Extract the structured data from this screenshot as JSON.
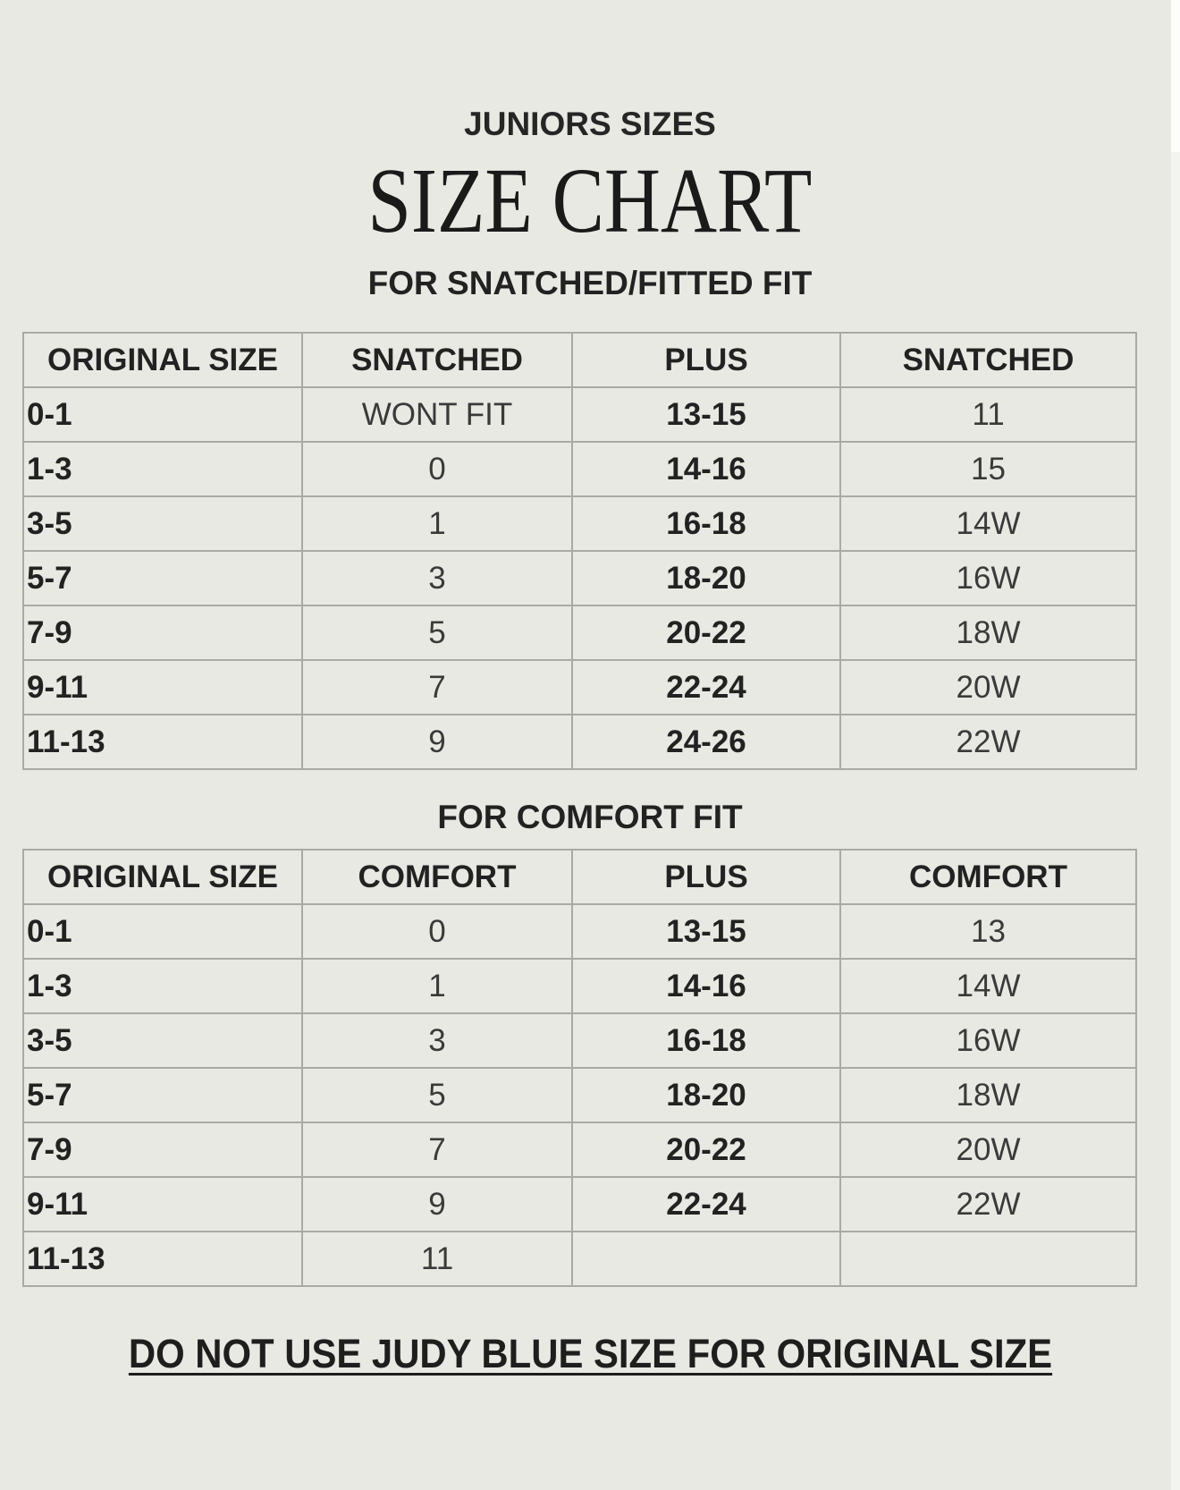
{
  "header": {
    "eyebrow": "JUNIORS SIZES",
    "title": "SIZE CHART"
  },
  "snatched": {
    "heading": "FOR SNATCHED/FITTED FIT",
    "columns": [
      "ORIGINAL SIZE",
      "SNATCHED",
      "PLUS",
      "SNATCHED"
    ],
    "rows": [
      [
        "0-1",
        "WONT FIT",
        "13-15",
        "11"
      ],
      [
        "1-3",
        "0",
        "14-16",
        "15"
      ],
      [
        "3-5",
        "1",
        "16-18",
        "14W"
      ],
      [
        "5-7",
        "3",
        "18-20",
        "16W"
      ],
      [
        "7-9",
        "5",
        "20-22",
        "18W"
      ],
      [
        "9-11",
        "7",
        "22-24",
        "20W"
      ],
      [
        "11-13",
        "9",
        "24-26",
        "22W"
      ]
    ]
  },
  "comfort": {
    "heading": "FOR COMFORT FIT",
    "columns": [
      "ORIGINAL SIZE",
      "COMFORT",
      "PLUS",
      "COMFORT"
    ],
    "rows": [
      [
        "0-1",
        "0",
        "13-15",
        "13"
      ],
      [
        "1-3",
        "1",
        "14-16",
        "14W"
      ],
      [
        "3-5",
        "3",
        "16-18",
        "16W"
      ],
      [
        "5-7",
        "5",
        "18-20",
        "18W"
      ],
      [
        "7-9",
        "7",
        "20-22",
        "20W"
      ],
      [
        "9-11",
        "9",
        "22-24",
        "22W"
      ],
      [
        "11-13",
        "11",
        "",
        ""
      ]
    ]
  },
  "footer": {
    "note": "DO NOT USE JUDY BLUE SIZE FOR ORIGINAL SIZE"
  }
}
